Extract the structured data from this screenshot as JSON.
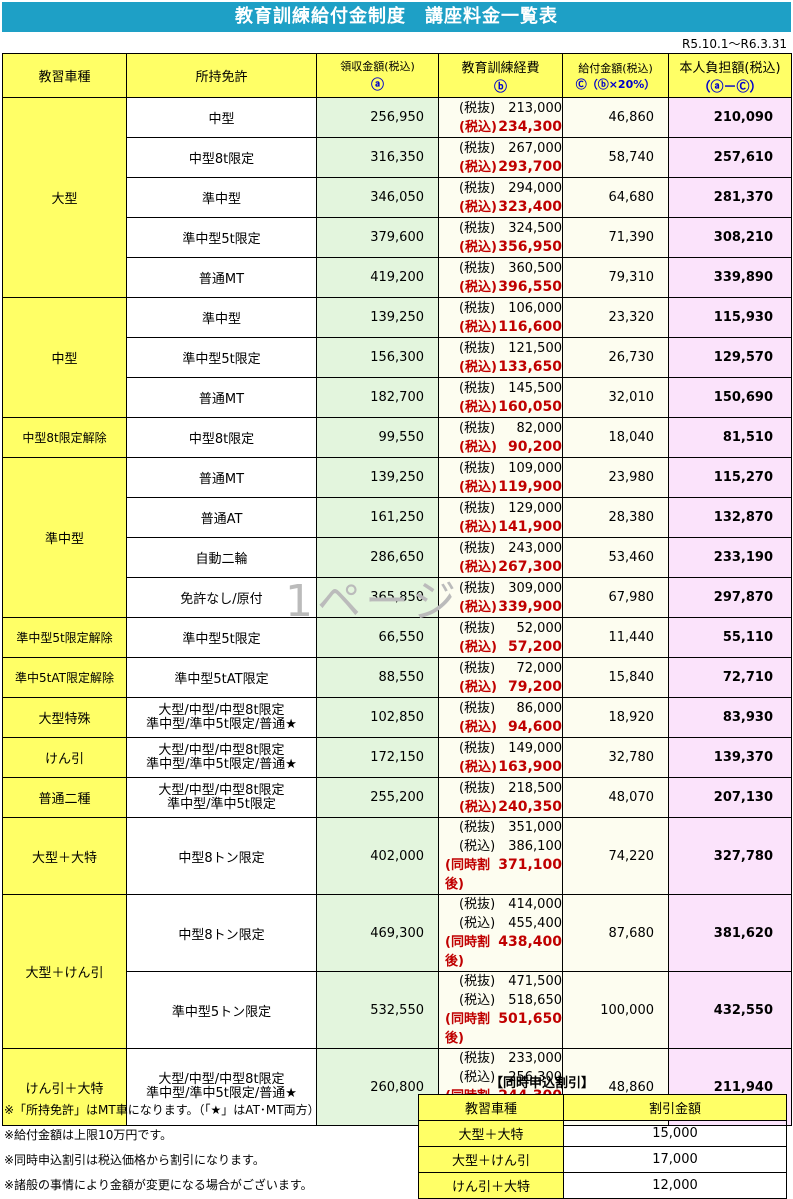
{
  "title": "教育訓練給付金制度　講座料金一覧表",
  "period": "R5.10.1～R6.3.31",
  "header": {
    "col1": "教習車種",
    "col2": "所持免許",
    "col3": "領収金額(税込)",
    "col3_mark": "ⓐ",
    "col4": "教育訓練経費",
    "col4_mark": "ⓑ",
    "col5": "給付金額(税込)",
    "col5_mark": "Ⓒ（ⓑ×20%）",
    "col6": "本人負担額(税込)",
    "col6_mark": "（ⓐ－Ⓒ）"
  },
  "labels": {
    "ex": "(税抜)",
    "in": "(税込)",
    "disc": "(同時割後)"
  },
  "groups": [
    {
      "category": "大型",
      "rows": [
        {
          "license": "中型",
          "received": "256,950",
          "ex": "213,000",
          "in": "234,300",
          "benefit": "46,860",
          "own": "210,090"
        },
        {
          "license": "中型8t限定",
          "received": "316,350",
          "ex": "267,000",
          "in": "293,700",
          "benefit": "58,740",
          "own": "257,610"
        },
        {
          "license": "準中型",
          "received": "346,050",
          "ex": "294,000",
          "in": "323,400",
          "benefit": "64,680",
          "own": "281,370"
        },
        {
          "license": "準中型5t限定",
          "received": "379,600",
          "ex": "324,500",
          "in": "356,950",
          "benefit": "71,390",
          "own": "308,210"
        },
        {
          "license": "普通MT",
          "received": "419,200",
          "ex": "360,500",
          "in": "396,550",
          "benefit": "79,310",
          "own": "339,890"
        }
      ]
    },
    {
      "category": "中型",
      "rows": [
        {
          "license": "準中型",
          "received": "139,250",
          "ex": "106,000",
          "in": "116,600",
          "benefit": "23,320",
          "own": "115,930"
        },
        {
          "license": "準中型5t限定",
          "received": "156,300",
          "ex": "121,500",
          "in": "133,650",
          "benefit": "26,730",
          "own": "129,570"
        },
        {
          "license": "普通MT",
          "received": "182,700",
          "ex": "145,500",
          "in": "160,050",
          "benefit": "32,010",
          "own": "150,690"
        }
      ]
    },
    {
      "category": "中型8t限定解除",
      "rows": [
        {
          "license": "中型8t限定",
          "received": "99,550",
          "ex": "82,000",
          "in": "90,200",
          "benefit": "18,040",
          "own": "81,510"
        }
      ]
    },
    {
      "category": "準中型",
      "rows": [
        {
          "license": "普通MT",
          "received": "139,250",
          "ex": "109,000",
          "in": "119,900",
          "benefit": "23,980",
          "own": "115,270"
        },
        {
          "license": "普通AT",
          "received": "161,250",
          "ex": "129,000",
          "in": "141,900",
          "benefit": "28,380",
          "own": "132,870"
        },
        {
          "license": "自動二輪",
          "received": "286,650",
          "ex": "243,000",
          "in": "267,300",
          "benefit": "53,460",
          "own": "233,190"
        },
        {
          "license": "免許なし/原付",
          "received": "365,850",
          "ex": "309,000",
          "in": "339,900",
          "benefit": "67,980",
          "own": "297,870"
        }
      ]
    },
    {
      "category": "準中型5t限定解除",
      "rows": [
        {
          "license": "準中型5t限定",
          "received": "66,550",
          "ex": "52,000",
          "in": "57,200",
          "benefit": "11,440",
          "own": "55,110"
        }
      ]
    },
    {
      "category": "準中5tAT限定解除",
      "rows": [
        {
          "license": "準中型5tAT限定",
          "received": "88,550",
          "ex": "72,000",
          "in": "79,200",
          "benefit": "15,840",
          "own": "72,710"
        }
      ]
    },
    {
      "category": "大型特殊",
      "rows": [
        {
          "license_l1": "大型/中型/中型8t限定",
          "license_l2": "準中型/準中5t限定/普通★",
          "received": "102,850",
          "ex": "86,000",
          "in": "94,600",
          "benefit": "18,920",
          "own": "83,930"
        }
      ]
    },
    {
      "category": "けん引",
      "rows": [
        {
          "license_l1": "大型/中型/中型8t限定",
          "license_l2": "準中型/準中5t限定/普通★",
          "received": "172,150",
          "ex": "149,000",
          "in": "163,900",
          "benefit": "32,780",
          "own": "139,370"
        }
      ]
    },
    {
      "category": "普通二種",
      "rows": [
        {
          "license_l1": "大型/中型/中型8t限定",
          "license_l2": "準中型/準中5t限定",
          "received": "255,200",
          "ex": "218,500",
          "in": "240,350",
          "benefit": "48,070",
          "own": "207,130"
        }
      ]
    },
    {
      "category": "大型＋大特",
      "rows": [
        {
          "license": "中型8トン限定",
          "received": "402,000",
          "ex": "351,000",
          "in": "386,100",
          "disc": "371,100",
          "benefit": "74,220",
          "own": "327,780"
        }
      ]
    },
    {
      "category": "大型＋けん引",
      "rows": [
        {
          "license": "中型8トン限定",
          "received": "469,300",
          "ex": "414,000",
          "in": "455,400",
          "disc": "438,400",
          "benefit": "87,680",
          "own": "381,620"
        },
        {
          "license": "準中型5トン限定",
          "received": "532,550",
          "ex": "471,500",
          "in": "518,650",
          "disc": "501,650",
          "benefit": "100,000",
          "own": "432,550"
        }
      ]
    },
    {
      "category": "けん引＋大特",
      "rows": [
        {
          "license_l1": "大型/中型/中型8t限定",
          "license_l2": "準中型/準中5t限定/普通★",
          "received": "260,800",
          "ex": "233,000",
          "in": "256,300",
          "disc": "244,300",
          "benefit": "48,860",
          "own": "211,940"
        }
      ]
    }
  ],
  "watermark": "1ページ",
  "notes": [
    "※「所持免許」はMT車になります。（「★」はAT･MT両方）",
    "※給付金額は上限10万円です。",
    "※同時申込割引は税込価格から割引になります。",
    "※諸般の事情により金額が変更になる場合がございます。"
  ],
  "discount": {
    "title": "【同時申込割引】",
    "col1": "教習車種",
    "col2": "割引金額",
    "rows": [
      {
        "type": "大型＋大特",
        "amount": "15,000"
      },
      {
        "type": "大型＋けん引",
        "amount": "17,000"
      },
      {
        "type": "けん引＋大特",
        "amount": "12,000"
      }
    ]
  },
  "colors": {
    "title_bg": "#1ea0c6",
    "header_bg": "#ffff66",
    "received_bg": "#e3f5dd",
    "own_bg": "#fbe3fb",
    "red": "#c00000"
  }
}
